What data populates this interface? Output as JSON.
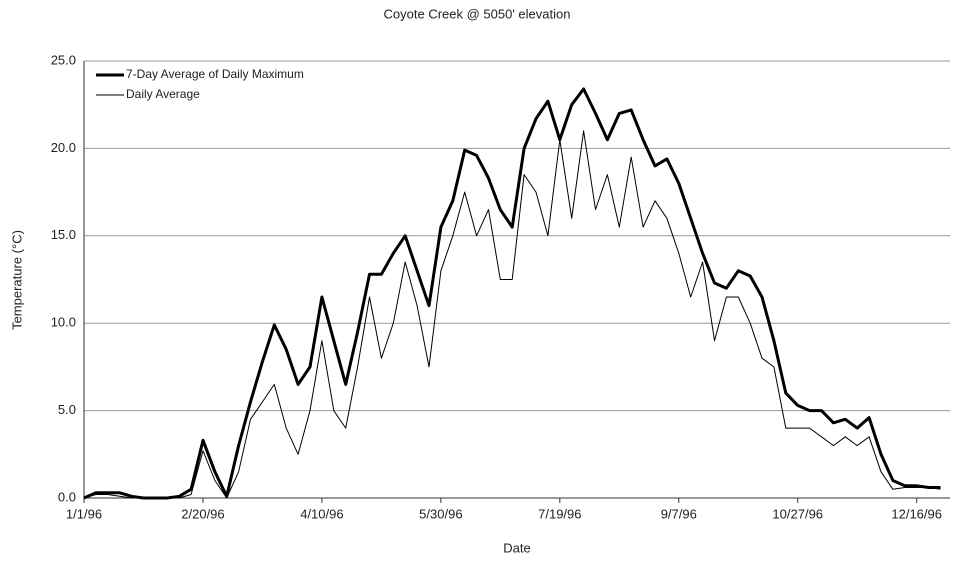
{
  "chart_data": {
    "type": "line",
    "title": "Coyote Creek @ 5050' elevation",
    "xlabel": "Date",
    "ylabel": "Temperature (°C)",
    "x": [
      "1996-01-01",
      "1996-01-06",
      "1996-01-11",
      "1996-01-16",
      "1996-01-21",
      "1996-01-26",
      "1996-01-31",
      "1996-02-05",
      "1996-02-10",
      "1996-02-15",
      "1996-02-20",
      "1996-02-25",
      "1996-03-01",
      "1996-03-06",
      "1996-03-11",
      "1996-03-16",
      "1996-03-21",
      "1996-03-26",
      "1996-03-31",
      "1996-04-05",
      "1996-04-10",
      "1996-04-15",
      "1996-04-20",
      "1996-04-25",
      "1996-04-30",
      "1996-05-05",
      "1996-05-10",
      "1996-05-15",
      "1996-05-20",
      "1996-05-25",
      "1996-05-30",
      "1996-06-04",
      "1996-06-09",
      "1996-06-14",
      "1996-06-19",
      "1996-06-24",
      "1996-06-29",
      "1996-07-04",
      "1996-07-09",
      "1996-07-14",
      "1996-07-19",
      "1996-07-24",
      "1996-07-29",
      "1996-08-03",
      "1996-08-08",
      "1996-08-13",
      "1996-08-18",
      "1996-08-23",
      "1996-08-28",
      "1996-09-02",
      "1996-09-07",
      "1996-09-12",
      "1996-09-17",
      "1996-09-22",
      "1996-09-27",
      "1996-10-02",
      "1996-10-07",
      "1996-10-12",
      "1996-10-17",
      "1996-10-22",
      "1996-10-27",
      "1996-11-01",
      "1996-11-06",
      "1996-11-11",
      "1996-11-16",
      "1996-11-21",
      "1996-11-26",
      "1996-12-01",
      "1996-12-06",
      "1996-12-11",
      "1996-12-16",
      "1996-12-21",
      "1996-12-26"
    ],
    "series": [
      {
        "name": "7-Day Average of Daily Maximum",
        "color": "#000000",
        "values": [
          0.0,
          0.3,
          0.3,
          0.3,
          0.1,
          0.0,
          0.0,
          0.0,
          0.1,
          0.5,
          3.3,
          1.5,
          0.1,
          3.0,
          5.5,
          7.8,
          9.9,
          8.5,
          6.5,
          7.5,
          11.5,
          9.0,
          6.5,
          9.5,
          12.8,
          12.8,
          14.0,
          15.0,
          13.0,
          11.0,
          15.5,
          17.0,
          19.9,
          19.6,
          18.3,
          16.5,
          15.5,
          20.0,
          21.7,
          22.7,
          20.5,
          22.5,
          23.4,
          22.0,
          20.5,
          22.0,
          22.2,
          20.5,
          19.0,
          19.4,
          18.0,
          16.0,
          14.0,
          12.3,
          12.0,
          13.0,
          12.7,
          11.5,
          9.0,
          6.0,
          5.3,
          5.0,
          5.0,
          4.3,
          4.5,
          4.0,
          4.6,
          2.5,
          1.0,
          0.7,
          0.7,
          0.6,
          0.6
        ]
      },
      {
        "name": "Daily Average",
        "color": "#000000",
        "values": [
          0.0,
          0.2,
          0.2,
          0.1,
          0.0,
          0.0,
          0.0,
          0.0,
          0.0,
          0.2,
          2.7,
          1.0,
          0.0,
          1.5,
          4.5,
          5.5,
          6.5,
          4.0,
          2.5,
          5.0,
          9.0,
          5.0,
          4.0,
          7.5,
          11.5,
          8.0,
          10.0,
          13.5,
          11.0,
          7.5,
          13.0,
          15.0,
          17.5,
          15.0,
          16.5,
          12.5,
          12.5,
          18.5,
          17.5,
          15.0,
          20.5,
          16.0,
          21.0,
          16.5,
          18.5,
          15.5,
          19.5,
          15.5,
          17.0,
          16.0,
          14.0,
          11.5,
          13.5,
          9.0,
          11.5,
          11.5,
          10.0,
          8.0,
          7.5,
          4.0,
          4.0,
          4.0,
          3.5,
          3.0,
          3.5,
          3.0,
          3.5,
          1.5,
          0.5,
          0.6,
          0.6,
          0.6,
          0.5
        ]
      }
    ],
    "xlim": [
      "1996-01-01",
      "1996-12-30"
    ],
    "xticks": [
      {
        "value": "1996-01-01",
        "label": "1/1/96"
      },
      {
        "value": "1996-02-20",
        "label": "2/20/96"
      },
      {
        "value": "1996-04-10",
        "label": "4/10/96"
      },
      {
        "value": "1996-05-30",
        "label": "5/30/96"
      },
      {
        "value": "1996-07-19",
        "label": "7/19/96"
      },
      {
        "value": "1996-09-07",
        "label": "9/7/96"
      },
      {
        "value": "1996-10-27",
        "label": "10/27/96"
      },
      {
        "value": "1996-12-16",
        "label": "12/16/96"
      }
    ],
    "ylim": [
      0,
      25
    ],
    "yticks": [
      {
        "value": 0,
        "label": "0.0"
      },
      {
        "value": 5,
        "label": "5.0"
      },
      {
        "value": 10,
        "label": "10.0"
      },
      {
        "value": 15,
        "label": "15.0"
      },
      {
        "value": 20,
        "label": "20.0"
      },
      {
        "value": 25,
        "label": "25.0"
      }
    ],
    "grid": true,
    "legend": "upper left"
  }
}
